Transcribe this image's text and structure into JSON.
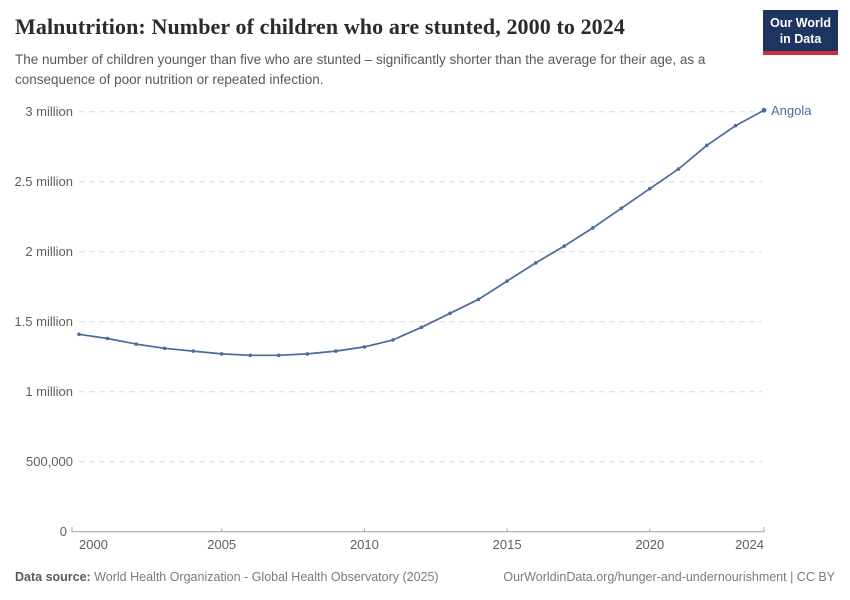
{
  "header": {
    "title": "Malnutrition: Number of children who are stunted, 2000 to 2024",
    "subtitle": "The number of children younger than five who are stunted – significantly shorter than the average for their age, as a consequence of poor nutrition or repeated infection.",
    "logo": {
      "line1": "Our World",
      "line2": "in Data",
      "bg_color": "#1d3560",
      "accent_color": "#cf2e41"
    }
  },
  "chart_data": {
    "type": "line",
    "title": "Malnutrition: Number of children who are stunted, 2000 to 2024",
    "xlabel": "",
    "ylabel": "",
    "grid": "horizontal-dashed",
    "legend_position": "end-of-line-label",
    "xlim": [
      2000,
      2024
    ],
    "ylim": [
      0,
      3100000
    ],
    "xticks": [
      2000,
      2005,
      2010,
      2015,
      2020,
      2024
    ],
    "yticks": [
      {
        "value": 0,
        "label": "0"
      },
      {
        "value": 500000,
        "label": "500,000"
      },
      {
        "value": 1000000,
        "label": "1 million"
      },
      {
        "value": 1500000,
        "label": "1.5 million"
      },
      {
        "value": 2000000,
        "label": "2 million"
      },
      {
        "value": 2500000,
        "label": "2.5 million"
      },
      {
        "value": 3000000,
        "label": "3 million"
      }
    ],
    "x": [
      2000,
      2001,
      2002,
      2003,
      2004,
      2005,
      2006,
      2007,
      2008,
      2009,
      2010,
      2011,
      2012,
      2013,
      2014,
      2015,
      2016,
      2017,
      2018,
      2019,
      2020,
      2021,
      2022,
      2023,
      2024
    ],
    "series": [
      {
        "name": "Angola",
        "color": "#4c6a9c",
        "values": [
          1410000,
          1380000,
          1340000,
          1310000,
          1290000,
          1270000,
          1260000,
          1260000,
          1270000,
          1290000,
          1320000,
          1370000,
          1460000,
          1560000,
          1660000,
          1790000,
          1920000,
          2040000,
          2170000,
          2310000,
          2450000,
          2590000,
          2760000,
          2900000,
          3010000
        ]
      }
    ]
  },
  "footer": {
    "data_source_label": "Data source:",
    "data_source_value": "World Health Organization - Global Health Observatory (2025)",
    "link": "OurWorldinData.org/hunger-and-undernourishment | CC BY"
  }
}
